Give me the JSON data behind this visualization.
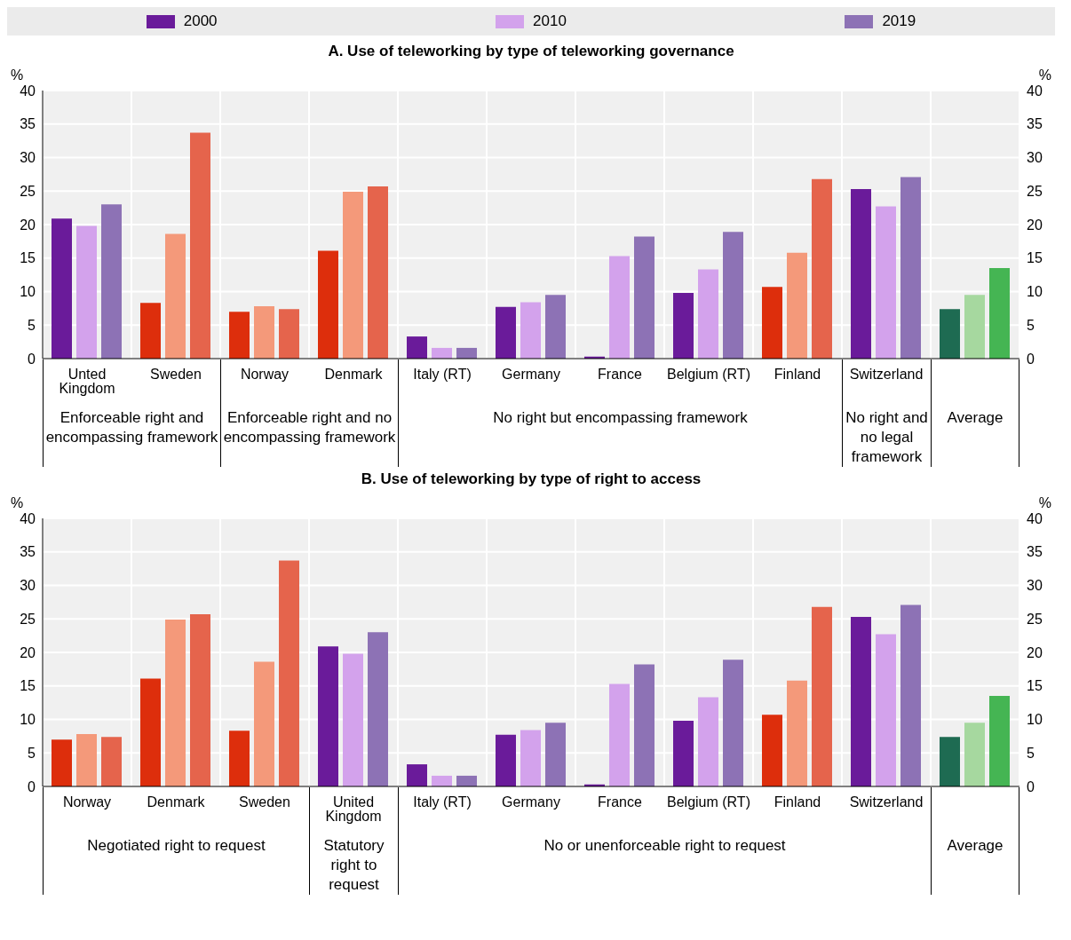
{
  "chart_data": [
    {
      "type": "bar",
      "title": "A. Use of teleworking by type of teleworking governance",
      "ylabel": "%",
      "y2label": "%",
      "legend": "top",
      "grid": true,
      "categories": [
        "Unted Kingdom",
        "Sweden",
        "Norway",
        "Denmark",
        "Italy (RT)",
        "Germany",
        "France",
        "Belgium (RT)",
        "Finland",
        "Switzerland",
        null
      ],
      "annotations": [
        "Enforceable right and encompassing framework",
        "Enforceable right and no encompassing framework",
        "No right but encompassing framework",
        "No right and no legal framework",
        "Average"
      ],
      "ylim": [
        0,
        40
      ],
      "yticks": [
        0,
        5,
        10,
        15,
        20,
        25,
        30,
        35,
        40
      ],
      "y2lim": [
        0,
        40
      ],
      "y2ticks": [
        0,
        5,
        10,
        15,
        20,
        25,
        30,
        35,
        40
      ],
      "series": [
        {
          "name": "2000",
          "color": "#6a1b9a",
          "values": [
            20.9,
            8.3,
            7.0,
            16.1,
            3.3,
            7.7,
            0.3,
            9.8,
            10.7,
            25.3,
            7.4
          ],
          "colors": [
            "#6a1b9a",
            "#dd2e0c",
            "#dd2e0c",
            "#dd2e0c",
            "#6a1b9a",
            "#6a1b9a",
            "#6a1b9a",
            "#6a1b9a",
            "#dd2e0c",
            "#6a1b9a",
            "#1e6b52"
          ]
        },
        {
          "name": "2010",
          "color": "#d3a2ec",
          "values": [
            19.8,
            18.6,
            7.8,
            24.9,
            1.6,
            8.4,
            15.3,
            13.3,
            15.8,
            22.7,
            9.5
          ],
          "colors": [
            "#d3a2ec",
            "#f4997a",
            "#f4997a",
            "#f4997a",
            "#d3a2ec",
            "#d3a2ec",
            "#d3a2ec",
            "#d3a2ec",
            "#f4997a",
            "#d3a2ec",
            "#a6d89f"
          ]
        },
        {
          "name": "2019",
          "color": "#8d72b5",
          "values": [
            23.0,
            33.7,
            7.4,
            25.7,
            1.6,
            9.5,
            18.2,
            18.9,
            26.8,
            27.1,
            13.5
          ],
          "colors": [
            "#8d72b5",
            "#e5644c",
            "#e5644c",
            "#e5644c",
            "#8d72b5",
            "#8d72b5",
            "#8d72b5",
            "#8d72b5",
            "#e5644c",
            "#8d72b5",
            "#45b553"
          ]
        }
      ]
    },
    {
      "type": "bar",
      "title": "B. Use of teleworking by type of right to access",
      "ylabel": "%",
      "y2label": "%",
      "grid": true,
      "categories": [
        "Norway",
        "Denmark",
        "Sweden",
        "United Kingdom",
        "Italy (RT)",
        "Germany",
        "France",
        "Belgium (RT)",
        "Finland",
        "Switzerland",
        null
      ],
      "annotations": [
        "Negotiated right to request",
        "Statutory right to request",
        "No or unenforceable right to request",
        "Average"
      ],
      "ylim": [
        0,
        40
      ],
      "yticks": [
        0,
        5,
        10,
        15,
        20,
        25,
        30,
        35,
        40
      ],
      "y2lim": [
        0,
        40
      ],
      "y2ticks": [
        0,
        5,
        10,
        15,
        20,
        25,
        30,
        35,
        40
      ],
      "series": [
        {
          "name": "2000",
          "color": "#6a1b9a",
          "values": [
            7.0,
            16.1,
            8.3,
            20.9,
            3.3,
            7.7,
            0.3,
            9.8,
            10.7,
            25.3,
            7.4
          ],
          "colors": [
            "#dd2e0c",
            "#dd2e0c",
            "#dd2e0c",
            "#6a1b9a",
            "#6a1b9a",
            "#6a1b9a",
            "#6a1b9a",
            "#6a1b9a",
            "#dd2e0c",
            "#6a1b9a",
            "#1e6b52"
          ]
        },
        {
          "name": "2010",
          "color": "#d3a2ec",
          "values": [
            7.8,
            24.9,
            18.6,
            19.8,
            1.6,
            8.4,
            15.3,
            13.3,
            15.8,
            22.7,
            9.5
          ],
          "colors": [
            "#f4997a",
            "#f4997a",
            "#f4997a",
            "#d3a2ec",
            "#d3a2ec",
            "#d3a2ec",
            "#d3a2ec",
            "#d3a2ec",
            "#f4997a",
            "#d3a2ec",
            "#a6d89f"
          ]
        },
        {
          "name": "2019",
          "color": "#8d72b5",
          "values": [
            7.4,
            25.7,
            33.7,
            23.0,
            1.6,
            9.5,
            18.2,
            18.9,
            26.8,
            27.1,
            13.5
          ],
          "colors": [
            "#e5644c",
            "#e5644c",
            "#e5644c",
            "#8d72b5",
            "#8d72b5",
            "#8d72b5",
            "#8d72b5",
            "#8d72b5",
            "#e5644c",
            "#8d72b5",
            "#45b553"
          ]
        }
      ]
    }
  ]
}
